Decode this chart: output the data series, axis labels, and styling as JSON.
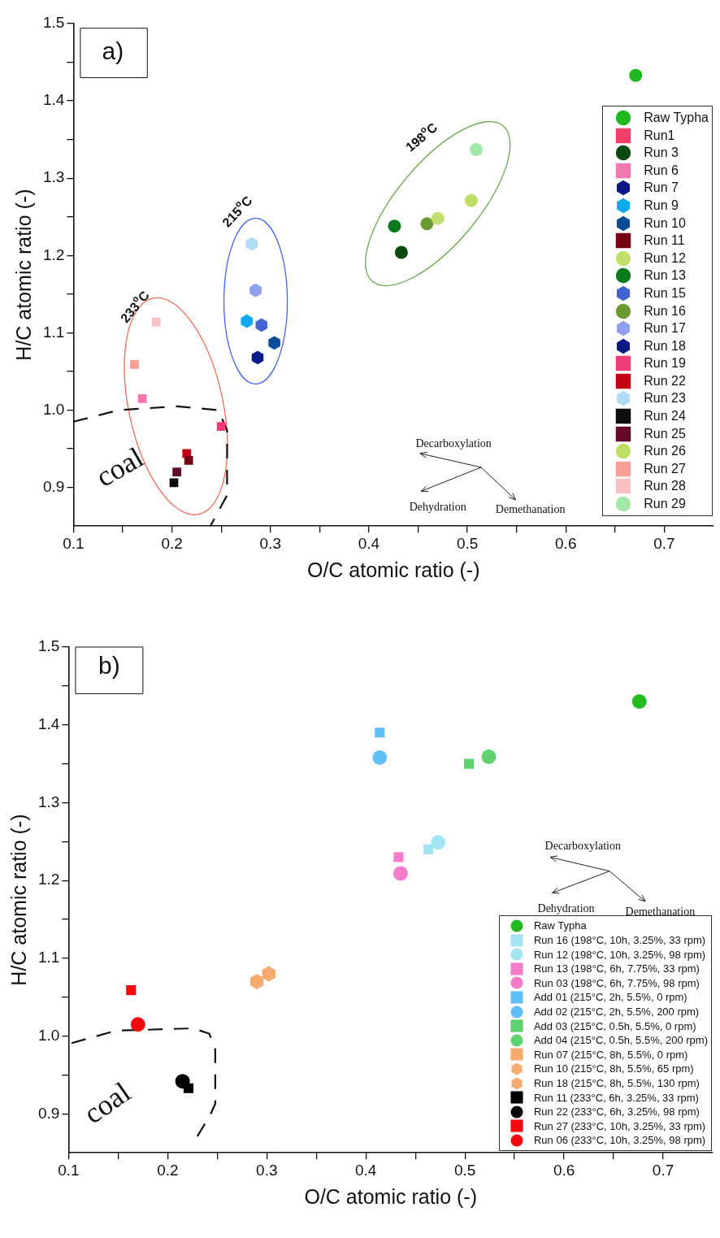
{
  "chart_data": [
    {
      "type": "scatter",
      "xlabel": "O/C atomic ratio (-)",
      "ylabel": "H/C atomic ratio (-)",
      "xlim": [
        0.1,
        0.75
      ],
      "ylim": [
        0.85,
        1.5
      ],
      "xticks": [
        0.1,
        {
          "value": 0.15,
          "label": null
        },
        0.2,
        {
          "value": 0.25,
          "label": null
        },
        0.3,
        {
          "value": 0.35,
          "label": null
        },
        0.4,
        {
          "value": 0.45,
          "label": null
        },
        0.5,
        {
          "value": 0.55,
          "label": null
        },
        0.6,
        {
          "value": 0.65,
          "label": null
        },
        0.7
      ],
      "yticks": [
        0.9,
        {
          "value": 0.95,
          "label": null
        },
        {
          "value": 1.0,
          "label": "1.0"
        },
        {
          "value": 1.05,
          "label": null
        },
        1.1,
        {
          "value": 1.15,
          "label": null
        },
        1.2,
        {
          "value": 1.25,
          "label": null
        },
        1.3,
        {
          "value": 1.35,
          "label": null
        },
        1.4,
        {
          "value": 1.45,
          "label": null
        },
        1.5
      ],
      "legend": "right",
      "annotations": [
        "a)",
        "198$^{o}$C",
        "215$^{o}$C",
        "233$^{o}$C",
        "coal",
        "Decarboxylation",
        "Dehydration",
        "Demethanation"
      ],
      "series": [
        {
          "name": "Raw Typha",
          "color": "#1fb81f",
          "marker": "circle",
          "x": [
            0.671
          ],
          "values": [
            1.433
          ]
        },
        {
          "name": "Run1",
          "color": "#f0406a",
          "marker": "square"
        },
        {
          "name": "Run 3",
          "color": "#0b4a0e",
          "marker": "circle",
          "x": [
            0.433
          ],
          "values": [
            1.204
          ]
        },
        {
          "name": "Run 6",
          "color": "#f07ab0",
          "marker": "square",
          "x": [
            0.17
          ],
          "values": [
            1.015
          ]
        },
        {
          "name": "Run 7",
          "color": "#0a1888"
        },
        {
          "name": "Run 9",
          "color": "#12a8f0",
          "x": [
            0.276
          ],
          "values": [
            1.115
          ]
        },
        {
          "name": "Run 10",
          "color": "#0a4c98",
          "x": [
            0.304
          ],
          "values": [
            1.087
          ]
        },
        {
          "name": "Run 11",
          "color": "#760012",
          "marker": "square",
          "x": [
            0.217
          ],
          "values": [
            0.935
          ]
        },
        {
          "name": "Run 12",
          "color": "#c2e06e",
          "marker": "circle",
          "x": [
            0.47
          ],
          "values": [
            1.248
          ]
        },
        {
          "name": "Run 13",
          "color": "#0a7a1c",
          "marker": "circle",
          "x": [
            0.426
          ],
          "values": [
            1.238
          ]
        },
        {
          "name": "Run 15",
          "color": "#4562d4",
          "x": [
            0.291
          ],
          "values": [
            1.11
          ]
        },
        {
          "name": "Run 16",
          "color": "#6c9a32",
          "marker": "circle",
          "x": [
            0.459
          ],
          "values": [
            1.241
          ]
        },
        {
          "name": "Run 17",
          "color": "#8f9ff0",
          "x": [
            0.285
          ],
          "values": [
            1.155
          ]
        },
        {
          "name": "Run 18",
          "color": "#0a1888",
          "x": [
            0.287
          ],
          "values": [
            1.068
          ]
        },
        {
          "name": "Run 19",
          "color": "#f03c78",
          "marker": "square",
          "x": [
            0.25
          ],
          "values": [
            0.979
          ]
        },
        {
          "name": "Run 22",
          "color": "#c40012",
          "marker": "square",
          "x": [
            0.215
          ],
          "values": [
            0.944
          ]
        },
        {
          "name": "Run 23",
          "color": "#b2dcf6",
          "x": [
            0.281
          ],
          "values": [
            1.215
          ]
        },
        {
          "name": "Run 24",
          "color": "#0e0e0e",
          "marker": "square",
          "x": [
            0.202
          ],
          "values": [
            0.906
          ]
        },
        {
          "name": "Run 25",
          "color": "#660a2c",
          "marker": "square",
          "x": [
            0.205
          ],
          "values": [
            0.92
          ]
        },
        {
          "name": "Run 26",
          "color": "#bede66",
          "marker": "circle",
          "x": [
            0.504
          ],
          "values": [
            1.271
          ]
        },
        {
          "name": "Run 27",
          "color": "#f8a098",
          "marker": "square",
          "x": [
            0.162
          ],
          "values": [
            1.059
          ]
        },
        {
          "name": "Run 28",
          "color": "#f8c0c0",
          "marker": "square",
          "x": [
            0.184
          ],
          "values": [
            1.114
          ]
        },
        {
          "name": "Run 29",
          "color": "#a2e8aa",
          "marker": "circle",
          "x": [
            0.509
          ],
          "values": [
            1.337
          ]
        }
      ]
    },
    {
      "type": "scatter",
      "xlabel": "O/C atomic ratio (-)",
      "ylabel": "H/C atomic ratio (-)",
      "xlim": [
        0.1,
        0.75
      ],
      "ylim": [
        0.85,
        1.5
      ],
      "xticks": [
        0.1,
        {
          "value": 0.15,
          "label": null
        },
        0.2,
        {
          "value": 0.25,
          "label": null
        },
        0.3,
        {
          "value": 0.35,
          "label": null
        },
        0.4,
        {
          "value": 0.45,
          "label": null
        },
        0.5,
        {
          "value": 0.55,
          "label": null
        },
        0.6,
        {
          "value": 0.65,
          "label": null
        },
        0.7
      ],
      "yticks": [
        0.9,
        {
          "value": 0.95,
          "label": null
        },
        {
          "value": 1.0,
          "label": "1.0"
        },
        {
          "value": 1.05,
          "label": null
        },
        1.1,
        {
          "value": 1.15,
          "label": null
        },
        1.2,
        {
          "value": 1.25,
          "label": null
        },
        1.3,
        {
          "value": 1.35,
          "label": null
        },
        1.4,
        {
          "value": 1.45,
          "label": null
        },
        1.5
      ],
      "legend": "bottom right",
      "annotations": [
        "b)",
        "coal",
        "Decarboxylation",
        "Dehydration",
        "Demethanation"
      ],
      "series": [
        {
          "name": "Raw Typha",
          "color": "#22bb22",
          "marker": "circle",
          "x": [
            0.676
          ],
          "values": [
            1.43
          ]
        },
        {
          "name": "Run 16 (198°C, 10h, 3.25%, 33 rpm)",
          "color": "#a2e4f2",
          "marker": "square",
          "x": [
            0.463
          ],
          "values": [
            1.24
          ]
        },
        {
          "name": "Run 12 (198°C, 10h, 3.25%, 98 rpm)",
          "color": "#a2e4f2",
          "marker": "circle",
          "x": [
            0.473
          ],
          "values": [
            1.249
          ]
        },
        {
          "name": "Run 13 (198°C, 6h, 7.75%, 33 rpm)",
          "color": "#f57ccb",
          "marker": "square",
          "x": [
            0.433
          ],
          "values": [
            1.23
          ]
        },
        {
          "name": "Run 03 (198°C, 6h, 7.75%, 98 rpm)",
          "color": "#f57ccb",
          "marker": "circle",
          "x": [
            0.435
          ],
          "values": [
            1.209
          ]
        },
        {
          "name": "Add 01 (215°C, 2h, 5.5%, 0 rpm)",
          "color": "#62c0f8",
          "marker": "square",
          "x": [
            0.414
          ],
          "values": [
            1.39
          ]
        },
        {
          "name": "Add 02 (215°C, 2h, 5.5%, 200 rpm)",
          "color": "#62c0f8",
          "marker": "circle",
          "x": [
            0.414
          ],
          "values": [
            1.358
          ]
        },
        {
          "name": "Add 03 (215°C, 0.5h, 5.5%, 0 rpm)",
          "color": "#5fd270",
          "marker": "square",
          "x": [
            0.504
          ],
          "values": [
            1.35
          ]
        },
        {
          "name": "Add 04 (215°C, 0.5h, 5.5%, 200 rpm)",
          "color": "#5fd270",
          "marker": "circle",
          "x": [
            0.524
          ],
          "values": [
            1.359
          ]
        },
        {
          "name": "Run 07 (215°C, 8h, 5.5%, 0 rpm)",
          "color": "#f5aa6e",
          "marker": "square"
        },
        {
          "name": "Run 10 (215°C, 8h, 5.5%, 65 rpm)",
          "color": "#f5aa6e",
          "x": [
            0.302
          ],
          "values": [
            1.08
          ]
        },
        {
          "name": "Run 18 (215°C, 8h, 5.5%, 130 rpm)",
          "color": "#f5aa6e",
          "x": [
            0.29
          ],
          "values": [
            1.07
          ]
        },
        {
          "name": "Run 11 (233°C, 6h, 3.25%, 33 rpm)",
          "color": "#000000",
          "marker": "square",
          "x": [
            0.221
          ],
          "values": [
            0.933
          ]
        },
        {
          "name": "Run 22 (233°C, 6h, 3.25%, 98 rpm)",
          "color": "#000000",
          "marker": "circle",
          "x": [
            0.215
          ],
          "values": [
            0.942
          ]
        },
        {
          "name": "Run 27 (233°C, 10h, 3.25%, 33 rpm)",
          "color": "#f20a10",
          "marker": "square",
          "x": [
            0.163
          ],
          "values": [
            1.059
          ]
        },
        {
          "name": "Run 06 (233°C, 10h, 3.25%, 98 rpm)",
          "color": "#f20a10",
          "marker": "circle",
          "x": [
            0.17
          ],
          "values": [
            1.015
          ]
        }
      ]
    }
  ]
}
